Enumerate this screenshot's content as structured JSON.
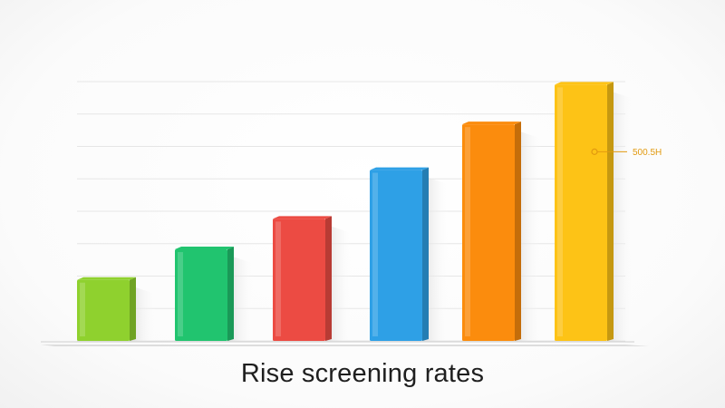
{
  "chart_data": {
    "type": "bar",
    "title": "Rise screening rates",
    "xlabel": "",
    "ylabel": "",
    "ylim": [
      0,
      8.5
    ],
    "grid": true,
    "values": [
      2,
      3,
      4,
      5.6,
      7.1,
      8.4
    ],
    "colors": [
      "#8fd12e",
      "#21c46f",
      "#ec4b43",
      "#2ea0e6",
      "#fb8c0d",
      "#fdc316"
    ],
    "annotation": {
      "text": "500.5H",
      "bar_index": 5,
      "value": 6.2,
      "color": "#e29a10"
    }
  }
}
